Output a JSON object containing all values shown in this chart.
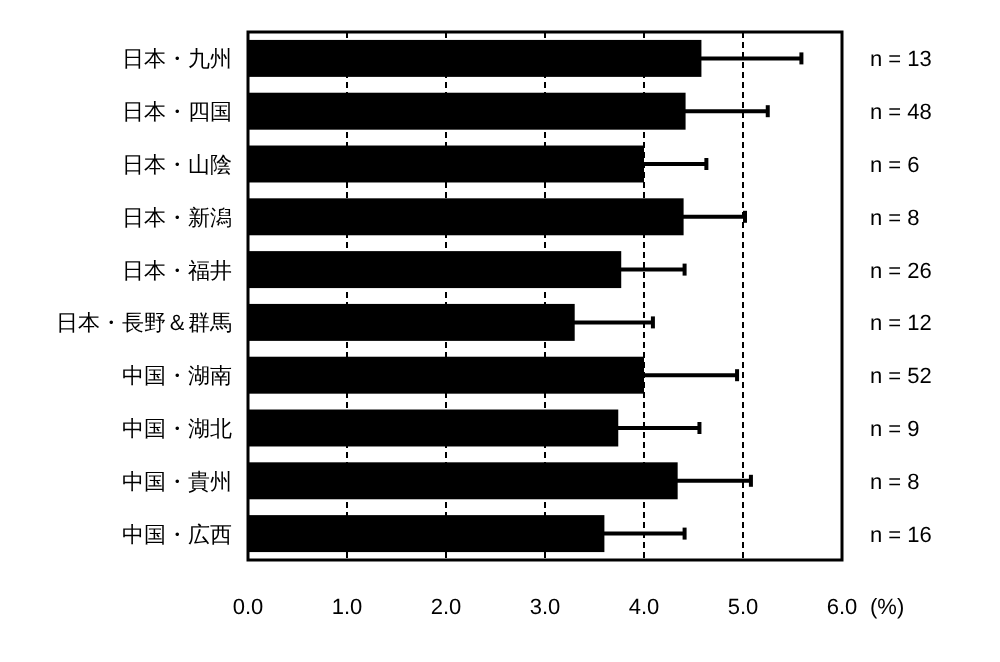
{
  "chart_data": {
    "type": "bar",
    "orientation": "horizontal",
    "xlabel": "(%)",
    "categories": [
      "日本・九州",
      "日本・四国",
      "日本・山陰",
      "日本・新潟",
      "日本・福井",
      "日本・長野＆群馬",
      "中国・湖南",
      "中国・湖北",
      "中国・貴州",
      "中国・広西"
    ],
    "values": [
      4.58,
      4.42,
      4.0,
      4.4,
      3.77,
      3.3,
      4.0,
      3.74,
      4.34,
      3.6
    ],
    "errors": [
      1.01,
      0.83,
      0.63,
      0.62,
      0.64,
      0.79,
      0.94,
      0.82,
      0.74,
      0.81
    ],
    "color": "#000000",
    "xlim": [
      0,
      6
    ],
    "xticks": [
      {
        "value": 0,
        "label": "0.0"
      },
      {
        "value": 1,
        "label": "1.0"
      },
      {
        "value": 2,
        "label": "2.0"
      },
      {
        "value": 3,
        "label": "3.0"
      },
      {
        "value": 4,
        "label": "4.0"
      },
      {
        "value": 5,
        "label": "5.0"
      },
      {
        "value": 6,
        "label": "6.0"
      }
    ],
    "grid": "x",
    "annotations": [
      "n = 13",
      "n = 48",
      "n = 6",
      "n = 8",
      "n = 26",
      "n = 12",
      "n = 52",
      "n = 9",
      "n = 8",
      "n = 16"
    ]
  }
}
